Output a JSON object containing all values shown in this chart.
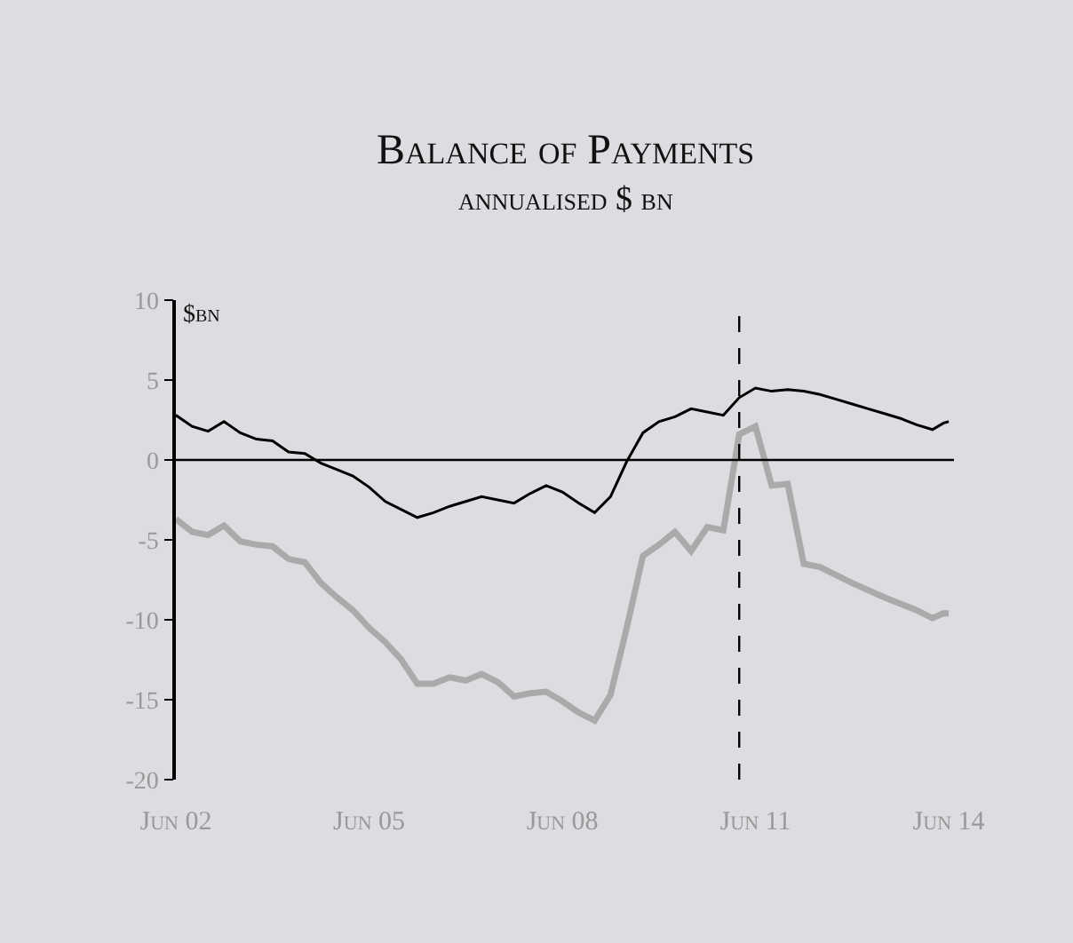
{
  "chart_data": {
    "type": "line",
    "title": "Balance of Payments",
    "subtitle": "annualised $ bn",
    "ylabel": "$bn",
    "xlim": [
      "2002-06",
      "2014-07"
    ],
    "xticks": [
      {
        "value": "2002-06",
        "label": "Jun 02"
      },
      {
        "value": "2005-06",
        "label": "Jun 05"
      },
      {
        "value": "2008-06",
        "label": "Jun 08"
      },
      {
        "value": "2011-06",
        "label": "Jun 11"
      },
      {
        "value": "2014-06",
        "label": "Jun 14"
      }
    ],
    "ylim": [
      -20,
      10
    ],
    "yticks": [
      -20,
      -15,
      -10,
      -5,
      0,
      5,
      10
    ],
    "ref_lines": [
      {
        "axis": "x",
        "value": "2011-03",
        "label": null,
        "color": "#000000",
        "line_style": "dashed"
      },
      {
        "axis": "y",
        "value": 0,
        "label": null,
        "color": "#000000",
        "line_style": "solid"
      }
    ],
    "series": [
      {
        "color": "#000000",
        "x": [
          "2002-06",
          "2002-09",
          "2002-12",
          "2003-03",
          "2003-06",
          "2003-09",
          "2003-12",
          "2004-03",
          "2004-06",
          "2004-09",
          "2004-12",
          "2005-03",
          "2005-06",
          "2005-09",
          "2005-12",
          "2006-03",
          "2006-06",
          "2006-09",
          "2006-12",
          "2007-03",
          "2007-06",
          "2007-09",
          "2007-12",
          "2008-03",
          "2008-06",
          "2008-09",
          "2008-12",
          "2009-03",
          "2009-06",
          "2009-09",
          "2009-12",
          "2010-03",
          "2010-06",
          "2010-09",
          "2010-12",
          "2011-03",
          "2011-06",
          "2011-09",
          "2011-12",
          "2012-03",
          "2012-06",
          "2012-09",
          "2012-12",
          "2013-03",
          "2013-06",
          "2013-09",
          "2013-12",
          "2014-03",
          "2014-05",
          "2014-06"
        ],
        "values": [
          2.8,
          2.1,
          1.8,
          2.4,
          1.7,
          1.3,
          1.2,
          0.5,
          0.4,
          -0.2,
          -0.6,
          -1.0,
          -1.7,
          -2.6,
          -3.1,
          -3.6,
          -3.3,
          -2.9,
          -2.6,
          -2.3,
          -2.5,
          -2.7,
          -2.1,
          -1.6,
          -2.0,
          -2.7,
          -3.3,
          -2.3,
          -0.1,
          1.7,
          2.4,
          2.7,
          3.2,
          3.0,
          2.8,
          3.9,
          4.5,
          4.3,
          4.4,
          4.3,
          4.1,
          3.8,
          3.5,
          3.2,
          2.9,
          2.6,
          2.2,
          1.9,
          2.3,
          2.4
        ]
      },
      {
        "color": "#aaaaaa",
        "x": [
          "2002-06",
          "2002-09",
          "2002-12",
          "2003-03",
          "2003-06",
          "2003-09",
          "2003-12",
          "2004-03",
          "2004-06",
          "2004-09",
          "2004-12",
          "2005-03",
          "2005-06",
          "2005-09",
          "2005-12",
          "2006-03",
          "2006-06",
          "2006-09",
          "2006-12",
          "2007-03",
          "2007-06",
          "2007-09",
          "2007-12",
          "2008-03",
          "2008-06",
          "2008-09",
          "2008-12",
          "2009-03",
          "2009-06",
          "2009-09",
          "2009-12",
          "2010-03",
          "2010-06",
          "2010-09",
          "2010-12",
          "2011-03",
          "2011-06",
          "2011-09",
          "2011-12",
          "2012-03",
          "2012-06",
          "2012-12",
          "2013-06",
          "2013-12",
          "2014-03",
          "2014-05",
          "2014-06"
        ],
        "values": [
          -3.7,
          -4.5,
          -4.7,
          -4.1,
          -5.1,
          -5.3,
          -5.4,
          -6.2,
          -6.4,
          -7.7,
          -8.6,
          -9.4,
          -10.5,
          -11.4,
          -12.5,
          -14.0,
          -14.0,
          -13.6,
          -13.8,
          -13.4,
          -13.9,
          -14.8,
          -14.6,
          -14.5,
          -15.1,
          -15.8,
          -16.3,
          -14.7,
          -10.5,
          -6.0,
          -5.3,
          -4.5,
          -5.7,
          -4.2,
          -4.4,
          1.6,
          2.1,
          -1.6,
          -1.5,
          -6.5,
          -6.7,
          -7.7,
          -8.6,
          -9.4,
          -9.9,
          -9.6,
          -9.6
        ]
      }
    ]
  }
}
